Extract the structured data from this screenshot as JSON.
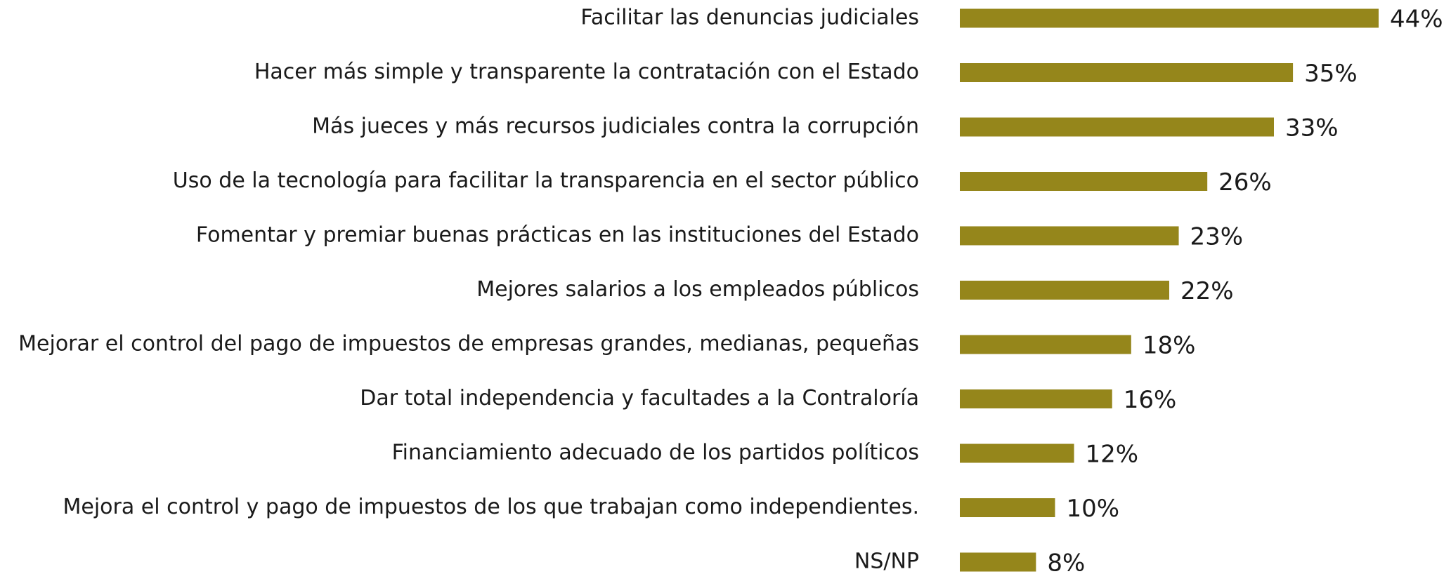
{
  "chart_data": {
    "type": "bar",
    "orientation": "horizontal",
    "color": "#95861b",
    "categories": [
      "Facilitar las denuncias judiciales",
      "Hacer más simple y transparente la contratación con el Estado",
      "Más jueces y más recursos judiciales contra la corrupción",
      "Uso de la tecnología para facilitar la transparencia en el sector público",
      "Fomentar y premiar buenas prácticas en las instituciones del Estado",
      "Mejores salarios a los empleados públicos",
      "Mejorar el control del pago de impuestos de empresas grandes, medianas, pequeñas",
      "Dar total independencia y facultades a la Contraloría",
      "Financiamiento adecuado de los partidos políticos",
      "Mejora el control y pago de impuestos de los que trabajan como independientes.",
      "NS/NP"
    ],
    "values": [
      44,
      35,
      33,
      26,
      23,
      22,
      18,
      16,
      12,
      10,
      8
    ],
    "value_labels": [
      "44%",
      "35%",
      "33%",
      "26%",
      "23%",
      "22%",
      "18%",
      "16%",
      "12%",
      "10%",
      "8%"
    ]
  }
}
